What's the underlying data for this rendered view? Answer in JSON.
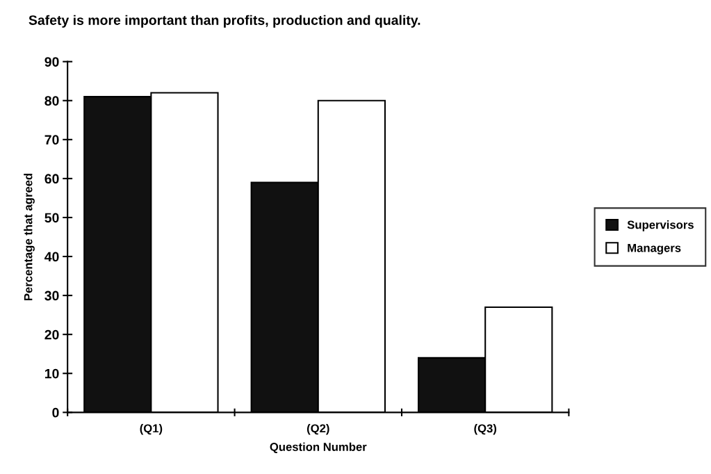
{
  "chart_data": {
    "type": "bar",
    "title": "Safety is more important than profits, production and quality.",
    "xlabel": "Question Number",
    "ylabel": "Percentage that agreed",
    "categories": [
      "(Q1)",
      "(Q2)",
      "(Q3)"
    ],
    "series": [
      {
        "name": "Supervisors",
        "color": "#111111",
        "values": [
          81,
          59,
          14
        ]
      },
      {
        "name": "Managers",
        "color": "#ffffff",
        "values": [
          82,
          80,
          27
        ]
      }
    ],
    "ylim": [
      0,
      90
    ],
    "yticks": [
      0,
      10,
      20,
      30,
      40,
      50,
      60,
      70,
      80,
      90
    ],
    "grid": false,
    "legend": "right"
  }
}
